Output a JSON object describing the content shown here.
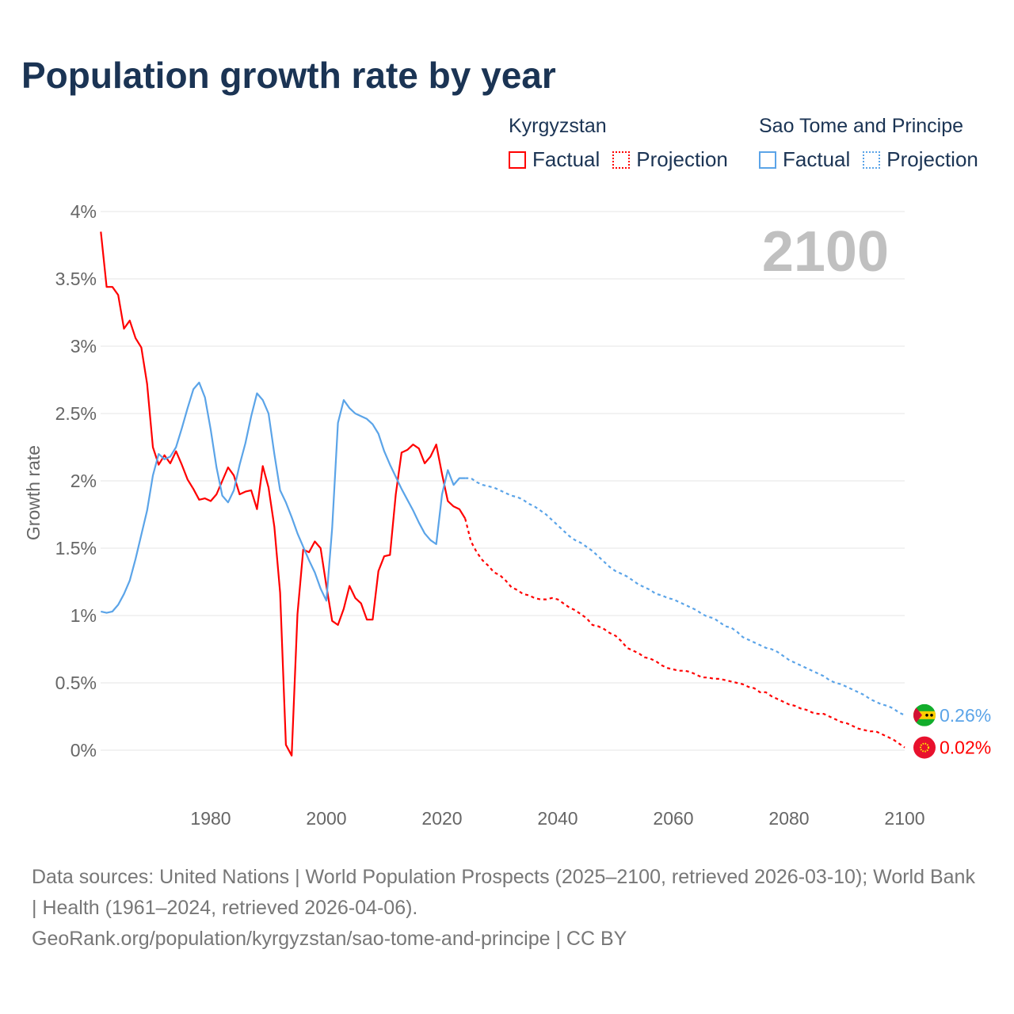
{
  "title": "Population growth rate by year",
  "legend": [
    {
      "country": "Kyrgyzstan",
      "factual": "Factual",
      "projection": "Projection",
      "color": "#ff0000"
    },
    {
      "country": "Sao Tome and Principe",
      "factual": "Factual",
      "projection": "Projection",
      "color": "#5ba4e8"
    }
  ],
  "year_label": "2100",
  "footer": {
    "sources": "Data sources: United Nations | World Population Prospects (2025–2100, retrieved 2026-03-10); World Bank | Health (1961–2024, retrieved 2026-04-06).",
    "url": "GeoRank.org/population/kyrgyzstan/sao-tome-and-principe | CC BY"
  },
  "chart_data": {
    "type": "line",
    "title": "Population growth rate by year",
    "xlabel": "",
    "ylabel": "Growth rate",
    "xlim": [
      1961,
      2100
    ],
    "ylim": [
      -0.2,
      4.0
    ],
    "x_ticks": [
      1980,
      2000,
      2020,
      2040,
      2060,
      2080,
      2100
    ],
    "y_ticks": [
      0,
      0.5,
      1,
      1.5,
      2,
      2.5,
      3,
      3.5,
      4
    ],
    "y_tick_labels": [
      "0%",
      "0.5%",
      "1%",
      "1.5%",
      "2%",
      "2.5%",
      "3%",
      "3.5%",
      "4%"
    ],
    "grid": true,
    "legend_position": "top-right",
    "series": [
      {
        "name": "Kyrgyzstan",
        "color": "#ff0000",
        "end_label": "0.02%",
        "factual_start": 1961,
        "factual": [
          3.85,
          3.44,
          3.44,
          3.38,
          3.13,
          3.19,
          3.06,
          2.99,
          2.72,
          2.25,
          2.12,
          2.19,
          2.13,
          2.22,
          2.12,
          2.01,
          1.94,
          1.86,
          1.87,
          1.85,
          1.9,
          2.0,
          2.1,
          2.04,
          1.9,
          1.92,
          1.93,
          1.79,
          2.11,
          1.95,
          1.66,
          1.17,
          0.04,
          -0.04,
          1.01,
          1.49,
          1.47,
          1.55,
          1.5,
          1.22,
          0.96,
          0.93,
          1.05,
          1.22,
          1.13,
          1.09,
          0.97,
          0.97,
          1.33,
          1.44,
          1.45,
          1.9,
          2.21,
          2.23,
          2.27,
          2.24,
          2.13,
          2.18,
          2.27,
          2.05,
          1.85,
          1.81,
          1.79,
          1.72
        ],
        "projection_start": 2024,
        "projection": [
          1.72,
          1.55,
          1.47,
          1.41,
          1.37,
          1.32,
          1.3,
          1.26,
          1.21,
          1.19,
          1.16,
          1.15,
          1.13,
          1.12,
          1.12,
          1.13,
          1.12,
          1.09,
          1.06,
          1.04,
          1.01,
          0.98,
          0.93,
          0.92,
          0.9,
          0.87,
          0.85,
          0.81,
          0.76,
          0.74,
          0.72,
          0.69,
          0.68,
          0.66,
          0.63,
          0.61,
          0.6,
          0.59,
          0.59,
          0.58,
          0.56,
          0.54,
          0.54,
          0.53,
          0.53,
          0.52,
          0.51,
          0.5,
          0.49,
          0.47,
          0.46,
          0.43,
          0.43,
          0.4,
          0.38,
          0.36,
          0.34,
          0.33,
          0.31,
          0.3,
          0.28,
          0.27,
          0.27,
          0.25,
          0.23,
          0.21,
          0.2,
          0.18,
          0.16,
          0.15,
          0.14,
          0.14,
          0.12,
          0.1,
          0.08,
          0.05,
          0.02
        ]
      },
      {
        "name": "Sao Tome and Principe",
        "color": "#5ba4e8",
        "end_label": "0.26%",
        "factual_start": 1961,
        "factual": [
          1.03,
          1.02,
          1.03,
          1.08,
          1.16,
          1.26,
          1.42,
          1.6,
          1.78,
          2.04,
          2.2,
          2.16,
          2.18,
          2.25,
          2.39,
          2.54,
          2.68,
          2.73,
          2.62,
          2.38,
          2.1,
          1.89,
          1.84,
          1.93,
          2.12,
          2.28,
          2.48,
          2.65,
          2.6,
          2.5,
          2.2,
          1.93,
          1.84,
          1.73,
          1.61,
          1.51,
          1.41,
          1.32,
          1.2,
          1.11,
          1.65,
          2.43,
          2.6,
          2.54,
          2.5,
          2.48,
          2.46,
          2.42,
          2.35,
          2.22,
          2.12,
          2.03,
          1.94,
          1.86,
          1.78,
          1.69,
          1.61,
          1.56,
          1.53,
          1.9,
          2.08,
          1.97,
          2.02,
          2.02
        ],
        "projection_start": 2024,
        "projection": [
          2.02,
          2.02,
          1.99,
          1.97,
          1.96,
          1.95,
          1.93,
          1.91,
          1.89,
          1.88,
          1.86,
          1.83,
          1.81,
          1.78,
          1.75,
          1.71,
          1.67,
          1.63,
          1.59,
          1.56,
          1.54,
          1.51,
          1.48,
          1.44,
          1.4,
          1.36,
          1.33,
          1.31,
          1.29,
          1.26,
          1.23,
          1.21,
          1.19,
          1.16,
          1.15,
          1.13,
          1.12,
          1.1,
          1.08,
          1.06,
          1.04,
          1.01,
          0.99,
          0.98,
          0.95,
          0.92,
          0.91,
          0.88,
          0.84,
          0.82,
          0.8,
          0.78,
          0.76,
          0.75,
          0.73,
          0.7,
          0.67,
          0.65,
          0.63,
          0.61,
          0.59,
          0.57,
          0.55,
          0.52,
          0.5,
          0.49,
          0.47,
          0.45,
          0.43,
          0.41,
          0.38,
          0.36,
          0.34,
          0.33,
          0.31,
          0.28,
          0.26
        ]
      }
    ]
  }
}
